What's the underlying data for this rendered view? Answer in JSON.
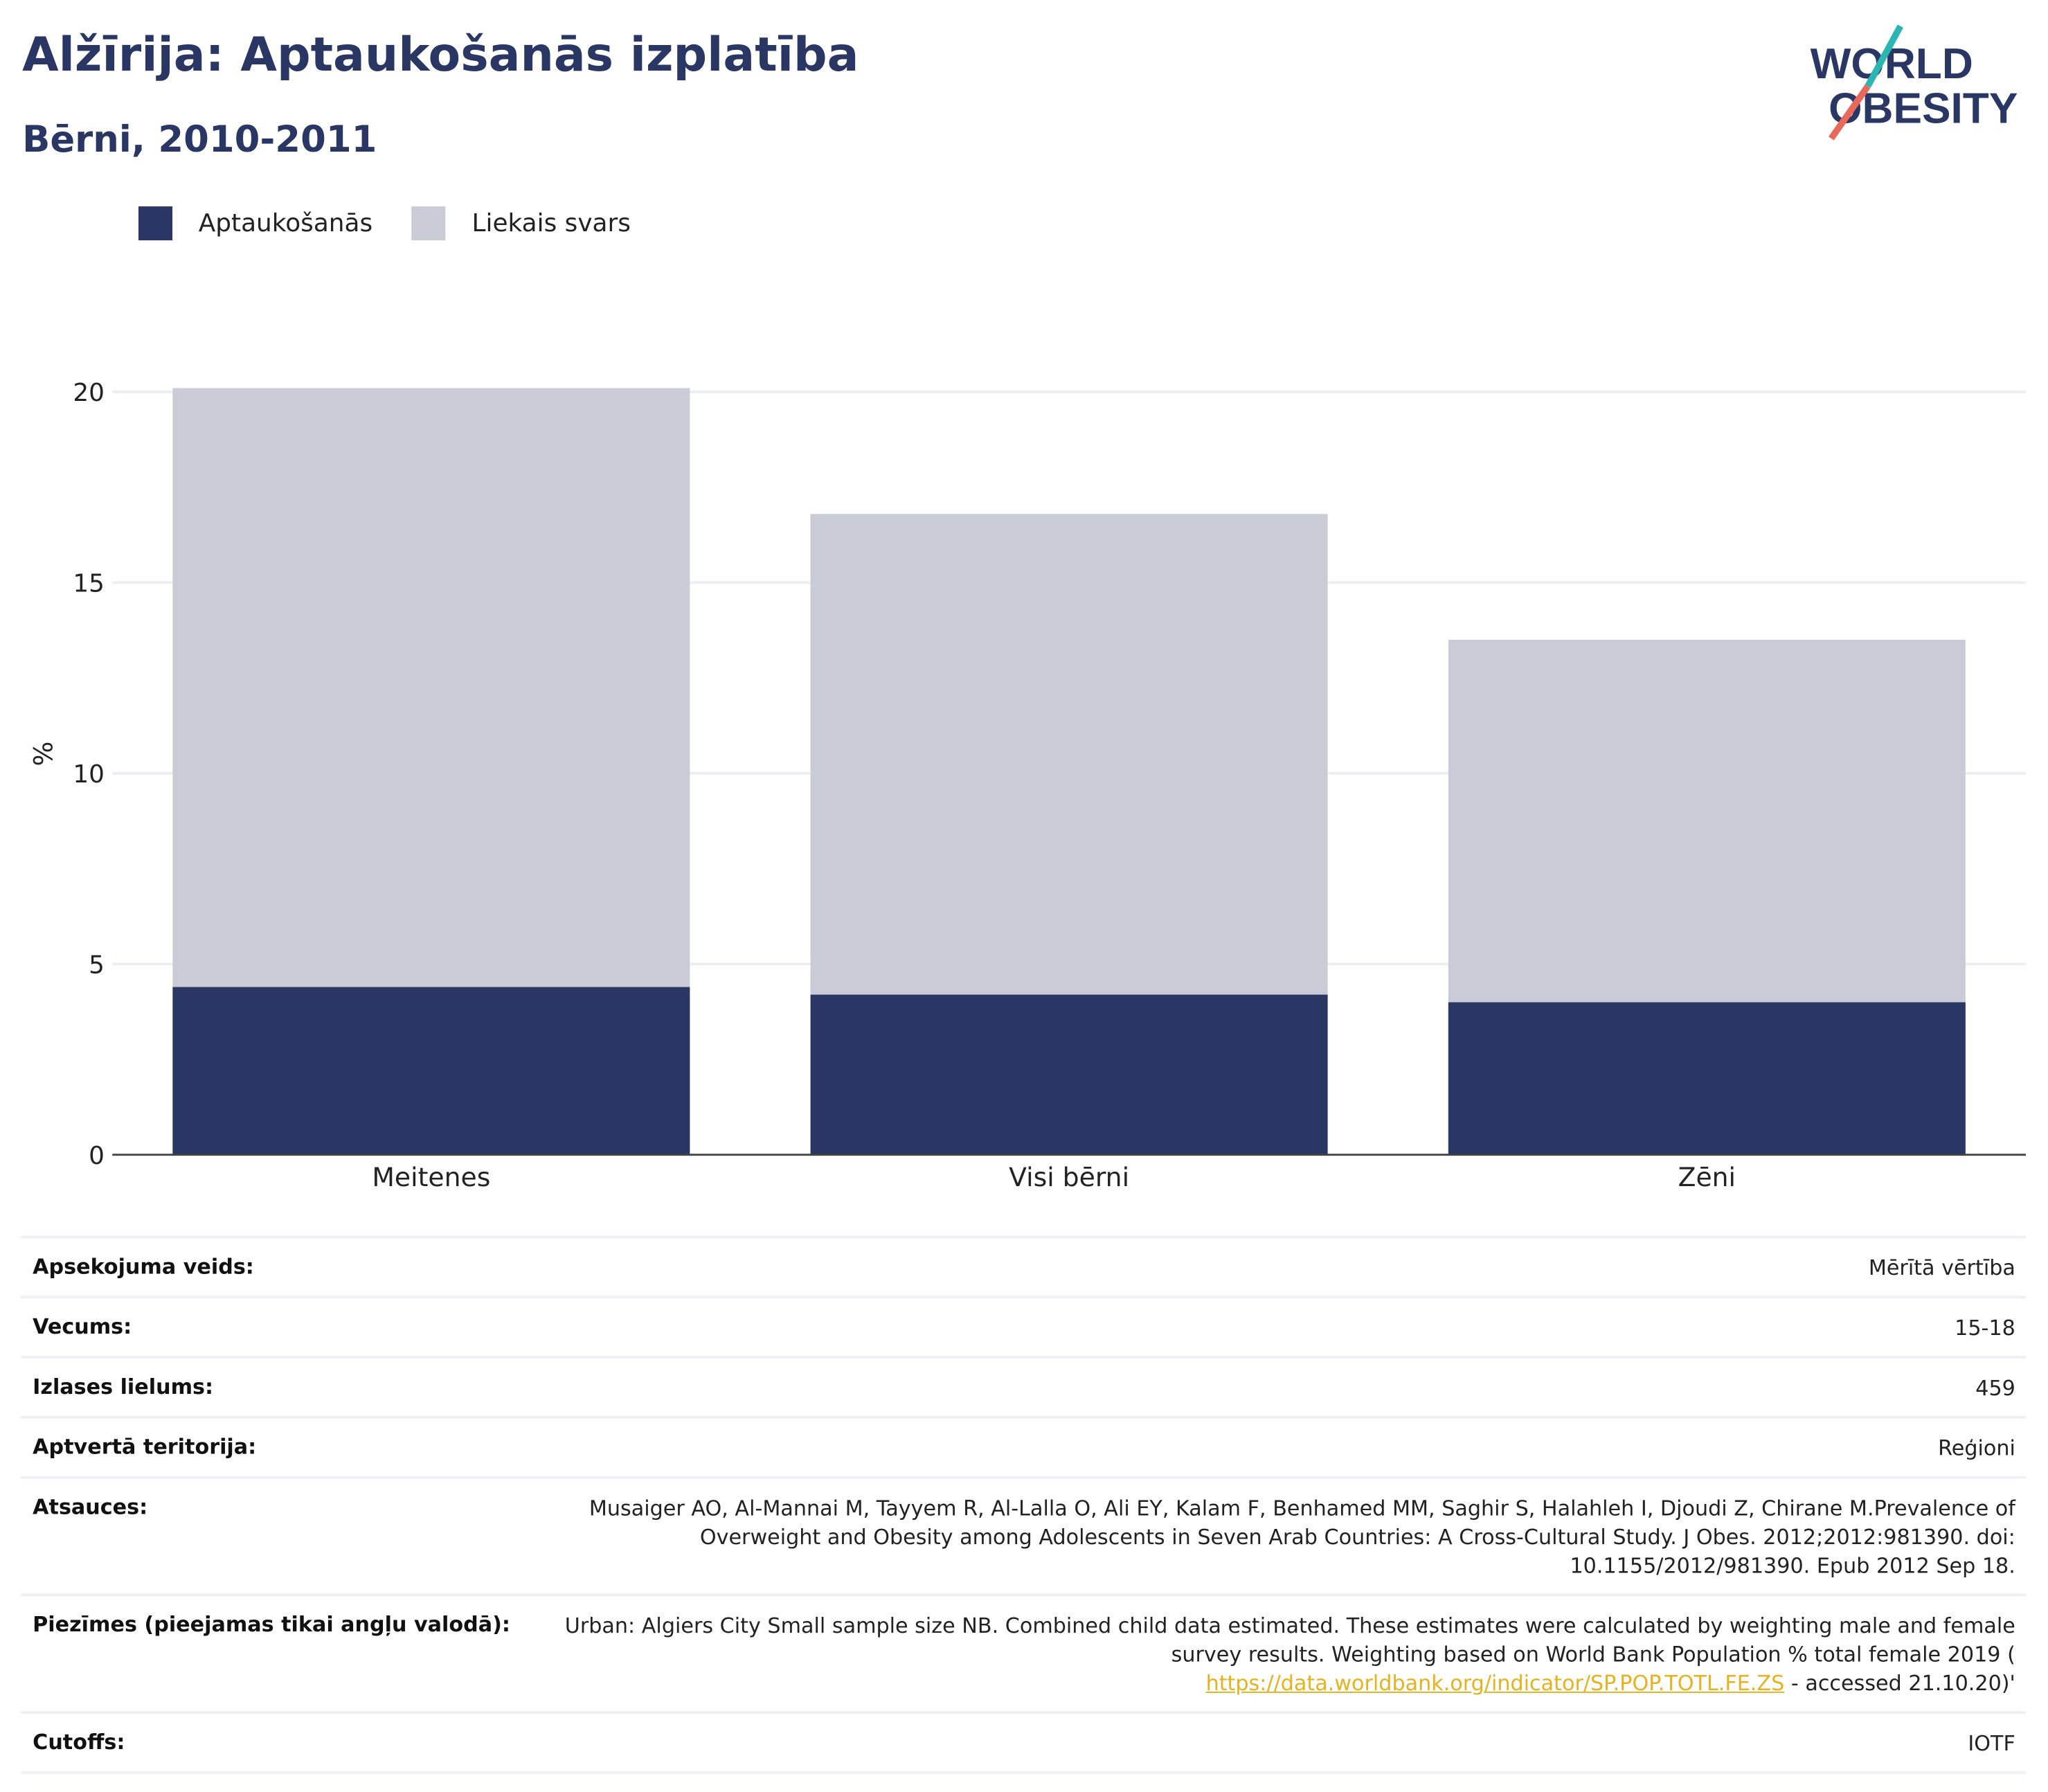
{
  "header": {
    "title": "Alžīrija: Aptaukošanās izplatība",
    "subtitle": "Bērni, 2010-2011"
  },
  "logo": {
    "line1": "WORLD",
    "line2": "OBESITY",
    "slash_colors": [
      "#2bb6b1",
      "#e8685a"
    ]
  },
  "legend": [
    {
      "label": "Aptaukošanās",
      "color": "#2a3764"
    },
    {
      "label": "Liekais svars",
      "color": "#c9ccd7"
    }
  ],
  "chart_data": {
    "type": "bar",
    "stacked": true,
    "categories": [
      "Meitenes",
      "Visi bērni",
      "Zēni"
    ],
    "series": [
      {
        "name": "Aptaukošanās",
        "values": [
          4.4,
          4.2,
          4.0
        ],
        "color": "#2a3764"
      },
      {
        "name": "Liekais svars",
        "values": [
          15.7,
          12.6,
          9.5
        ],
        "color": "#c9ccd7"
      }
    ],
    "ylabel": "%",
    "ylim": [
      0,
      20.5
    ],
    "yticks": [
      0,
      5,
      10,
      15,
      20
    ],
    "grid": true,
    "legend_position": "top-left"
  },
  "meta": [
    {
      "label": "Apsekojuma veids:",
      "value": "Mērītā vērtība"
    },
    {
      "label": "Vecums:",
      "value": "15-18"
    },
    {
      "label": "Izlases lielums:",
      "value": "459"
    },
    {
      "label": "Aptvertā teritorija:",
      "value": "Reģioni"
    },
    {
      "label": "Atsauces:",
      "value": "Musaiger AO, Al-Mannai M, Tayyem R, Al-Lalla O, Ali EY, Kalam F, Benhamed MM, Saghir S, Halahleh I, Djoudi Z, Chirane M.Prevalence of Overweight and Obesity among Adolescents in Seven Arab Countries: A Cross-Cultural Study. J Obes. 2012;2012:981390. doi: 10.1155/2012/981390. Epub 2012 Sep 18."
    },
    {
      "label": "Piezīmes (pieejamas tikai angļu valodā):",
      "value_pre": "Urban: Algiers City Small sample size NB. Combined child data estimated. These estimates were calculated by weighting male and female survey results. Weighting based on World Bank Population % total female 2019 (",
      "link": "https://data.worldbank.org/indicator/SP.POP.TOTL.FE.ZS",
      "value_post": " - accessed 21.10.20)'"
    },
    {
      "label": "Cutoffs:",
      "value": "IOTF"
    }
  ]
}
